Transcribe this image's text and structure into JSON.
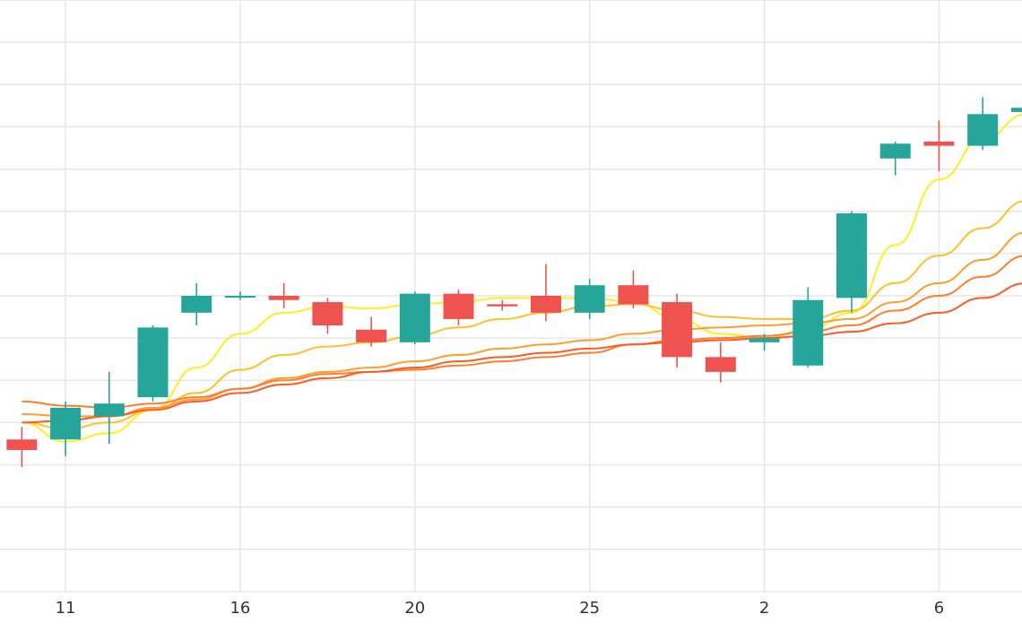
{
  "chart_data": {
    "type": "candlestick",
    "x_tick_labels": [
      {
        "label": "11",
        "index": 1
      },
      {
        "label": "16",
        "index": 5
      },
      {
        "label": "20",
        "index": 9
      },
      {
        "label": "25",
        "index": 13
      },
      {
        "label": "2",
        "index": 17
      },
      {
        "label": "6",
        "index": 21
      }
    ],
    "y_range": [
      -3,
      11
    ],
    "x_range": [
      -0.5,
      22.9
    ],
    "grid": true,
    "colors": {
      "up": "#26a69a",
      "down": "#ef5350",
      "grid": "#e6e6e6",
      "axis_text": "#333333",
      "ma_lines": [
        "#ffee22",
        "#ffc02a",
        "#ff9d2d",
        "#ff7e2e",
        "#ff5a22"
      ]
    },
    "candles": [
      {
        "open": 0.6,
        "high": 0.9,
        "low": -0.05,
        "close": 0.35
      },
      {
        "open": 0.6,
        "high": 1.5,
        "low": 0.2,
        "close": 1.35
      },
      {
        "open": 1.15,
        "high": 2.2,
        "low": 0.5,
        "close": 1.45
      },
      {
        "open": 1.6,
        "high": 3.3,
        "low": 1.5,
        "close": 3.25
      },
      {
        "open": 3.6,
        "high": 4.3,
        "low": 3.3,
        "close": 4.0
      },
      {
        "open": 4.0,
        "high": 4.1,
        "low": 3.9,
        "close": 4.0
      },
      {
        "open": 4.0,
        "high": 4.3,
        "low": 3.7,
        "close": 3.9
      },
      {
        "open": 3.85,
        "high": 3.95,
        "low": 3.1,
        "close": 3.3
      },
      {
        "open": 3.2,
        "high": 3.5,
        "low": 2.8,
        "close": 2.9
      },
      {
        "open": 2.9,
        "high": 4.1,
        "low": 2.85,
        "close": 4.05
      },
      {
        "open": 4.05,
        "high": 4.15,
        "low": 3.3,
        "close": 3.45
      },
      {
        "open": 3.8,
        "high": 3.9,
        "low": 3.65,
        "close": 3.75
      },
      {
        "open": 4.0,
        "high": 4.75,
        "low": 3.4,
        "close": 3.6
      },
      {
        "open": 3.6,
        "high": 4.4,
        "low": 3.45,
        "close": 4.25
      },
      {
        "open": 4.25,
        "high": 4.6,
        "low": 3.7,
        "close": 3.8
      },
      {
        "open": 3.85,
        "high": 4.05,
        "low": 2.3,
        "close": 2.55
      },
      {
        "open": 2.55,
        "high": 2.9,
        "low": 1.95,
        "close": 2.2
      },
      {
        "open": 2.9,
        "high": 3.1,
        "low": 2.7,
        "close": 3.0
      },
      {
        "open": 2.35,
        "high": 4.2,
        "low": 2.3,
        "close": 3.9
      },
      {
        "open": 3.95,
        "high": 6.0,
        "low": 3.6,
        "close": 5.95
      },
      {
        "open": 7.25,
        "high": 7.65,
        "low": 6.85,
        "close": 7.6
      },
      {
        "open": 7.65,
        "high": 8.15,
        "low": 6.95,
        "close": 7.55
      },
      {
        "open": 7.55,
        "high": 8.7,
        "low": 7.45,
        "close": 8.3
      },
      {
        "open": 8.35,
        "high": 8.55,
        "low": 8.1,
        "close": 8.45
      }
    ],
    "moving_averages": [
      {
        "values": [
          1.0,
          0.55,
          0.75,
          1.3,
          2.3,
          3.1,
          3.6,
          3.75,
          3.7,
          3.8,
          3.85,
          3.95,
          3.95,
          3.95,
          3.85,
          3.45,
          3.1,
          3.0,
          3.2,
          3.6,
          5.2,
          6.75,
          7.7,
          8.3
        ]
      },
      {
        "values": [
          1.0,
          0.85,
          1.0,
          1.3,
          1.7,
          2.25,
          2.6,
          2.8,
          2.9,
          3.05,
          3.25,
          3.45,
          3.6,
          3.75,
          3.8,
          3.65,
          3.5,
          3.45,
          3.45,
          3.65,
          4.3,
          4.95,
          5.6,
          6.25
        ]
      },
      {
        "values": [
          1.2,
          1.15,
          1.15,
          1.35,
          1.55,
          1.8,
          2.05,
          2.2,
          2.3,
          2.45,
          2.6,
          2.75,
          2.85,
          2.95,
          3.1,
          3.2,
          3.25,
          3.3,
          3.35,
          3.45,
          3.85,
          4.3,
          4.85,
          5.5
        ]
      },
      {
        "values": [
          1.5,
          1.4,
          1.35,
          1.45,
          1.6,
          1.8,
          2.0,
          2.15,
          2.2,
          2.25,
          2.35,
          2.45,
          2.55,
          2.65,
          2.85,
          2.95,
          3.0,
          3.05,
          3.15,
          3.3,
          3.65,
          4.0,
          4.45,
          4.95
        ]
      },
      {
        "values": [
          1.0,
          1.05,
          1.15,
          1.3,
          1.5,
          1.7,
          1.9,
          2.05,
          2.2,
          2.3,
          2.45,
          2.55,
          2.65,
          2.75,
          2.85,
          2.9,
          2.95,
          3.0,
          3.05,
          3.15,
          3.35,
          3.6,
          3.95,
          4.3
        ]
      }
    ]
  }
}
